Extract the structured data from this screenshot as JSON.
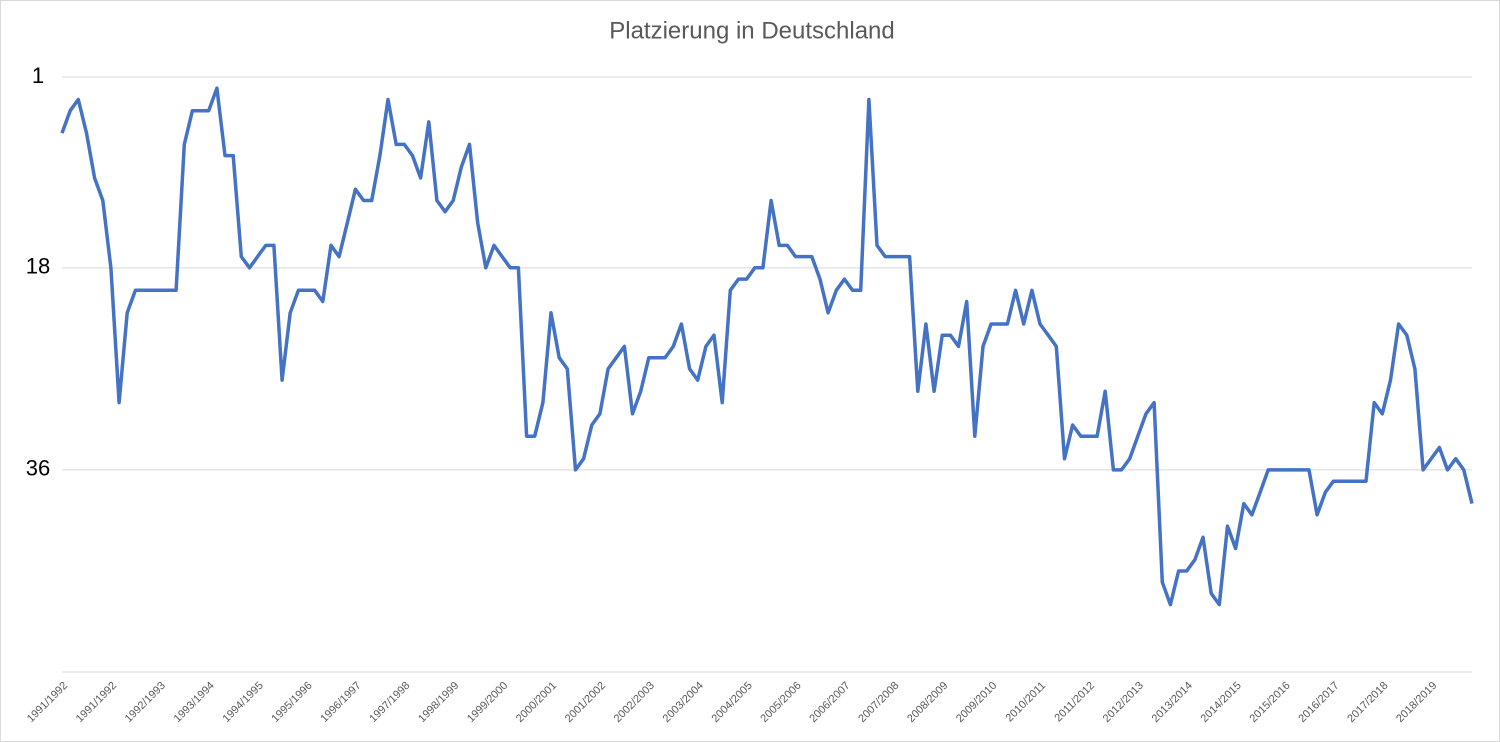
{
  "chart_data": {
    "type": "line",
    "title": "Platzierung in Deutschland",
    "categories": [
      "1991/1992",
      null,
      null,
      null,
      null,
      null,
      "1991/1992",
      null,
      null,
      null,
      null,
      null,
      "1992/1993",
      null,
      null,
      null,
      null,
      null,
      "1993/1994",
      null,
      null,
      null,
      null,
      null,
      "1994/1995",
      null,
      null,
      null,
      null,
      null,
      "1995/1996",
      null,
      null,
      null,
      null,
      null,
      "1996/1997",
      null,
      null,
      null,
      null,
      null,
      "1997/1998",
      null,
      null,
      null,
      null,
      null,
      "1998/1999",
      null,
      null,
      null,
      null,
      null,
      "1999/2000",
      null,
      null,
      null,
      null,
      null,
      "2000/2001",
      null,
      null,
      null,
      null,
      null,
      "2001/2002",
      null,
      null,
      null,
      null,
      null,
      "2002/2003",
      null,
      null,
      null,
      null,
      null,
      "2003/2004",
      null,
      null,
      null,
      null,
      null,
      "2004/2005",
      null,
      null,
      null,
      null,
      null,
      "2005/2006",
      null,
      null,
      null,
      null,
      null,
      "2006/2007",
      null,
      null,
      null,
      null,
      null,
      "2007/2008",
      null,
      null,
      null,
      null,
      null,
      "2008/2009",
      null,
      null,
      null,
      null,
      null,
      "2009/2010",
      null,
      null,
      null,
      null,
      null,
      "2010/2011",
      null,
      null,
      null,
      null,
      null,
      "2011/2012",
      null,
      null,
      null,
      null,
      null,
      "2012/2013",
      null,
      null,
      null,
      null,
      null,
      "2013/2014",
      null,
      null,
      null,
      null,
      null,
      "2014/2015",
      null,
      null,
      null,
      null,
      null,
      "2015/2016",
      null,
      null,
      null,
      null,
      null,
      "2016/2017",
      null,
      null,
      null,
      null,
      null,
      "2017/2018",
      null,
      null,
      null,
      null,
      null,
      "2018/2019",
      null,
      null,
      null,
      null,
      null
    ],
    "values": [
      6,
      4,
      3,
      6,
      10,
      12,
      18,
      30,
      22,
      20,
      20,
      20,
      20,
      20,
      20,
      7,
      4,
      4,
      4,
      2,
      8,
      8,
      17,
      18,
      17,
      16,
      16,
      28,
      22,
      20,
      20,
      20,
      21,
      16,
      17,
      14,
      11,
      12,
      12,
      8,
      3,
      7,
      7,
      8,
      10,
      5,
      12,
      13,
      12,
      9,
      7,
      14,
      18,
      16,
      17,
      18,
      18,
      33,
      33,
      30,
      22,
      26,
      27,
      36,
      35,
      32,
      31,
      27,
      26,
      25,
      31,
      29,
      26,
      26,
      26,
      25,
      23,
      27,
      28,
      25,
      24,
      30,
      20,
      19,
      19,
      18,
      18,
      12,
      16,
      16,
      17,
      17,
      17,
      19,
      22,
      20,
      19,
      20,
      20,
      3,
      16,
      17,
      17,
      17,
      17,
      29,
      23,
      29,
      24,
      24,
      25,
      21,
      33,
      25,
      23,
      23,
      23,
      20,
      23,
      20,
      23,
      24,
      25,
      35,
      32,
      33,
      33,
      33,
      29,
      36,
      36,
      35,
      33,
      31,
      30,
      46,
      48,
      45,
      45,
      44,
      42,
      47,
      48,
      41,
      43,
      39,
      40,
      38,
      36,
      36,
      36,
      36,
      36,
      36,
      40,
      38,
      37,
      37,
      37,
      37,
      37,
      30,
      31,
      28,
      23,
      24,
      27,
      36,
      35,
      34,
      36,
      35,
      36,
      39
    ],
    "color": "#4472c4",
    "ylim": [
      1,
      54
    ],
    "y_inverted": true,
    "yticks": [
      1,
      18,
      36
    ],
    "grid": true
  }
}
